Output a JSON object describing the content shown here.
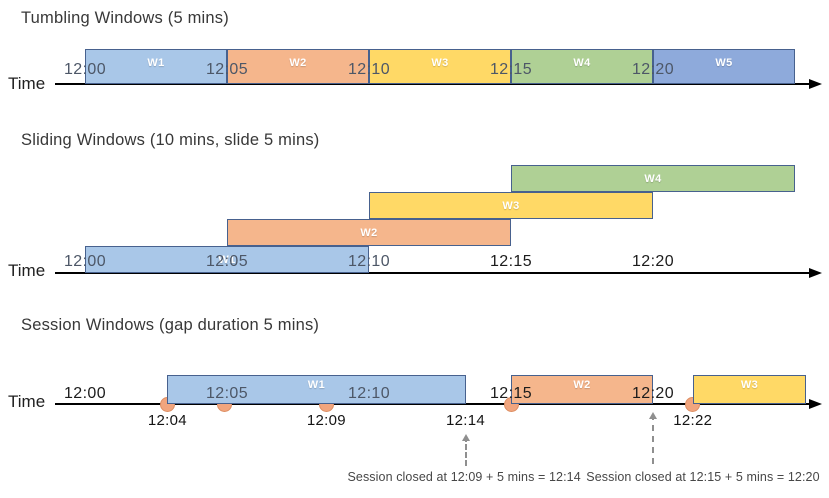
{
  "colors": {
    "box_fills": {
      "blue": "#A9C7E8",
      "orange": "#F5B68C",
      "yellow": "#FFD966",
      "green": "#AFD095",
      "steel": "#8EAADB"
    },
    "box_border": "#47618E",
    "dot_fill": "#F1A57E",
    "dot_border": "#DD8E62",
    "axis_color": "#000000"
  },
  "diagrams": [
    {
      "key": "tumbling",
      "title": "Tumbling Windows (5 mins)",
      "time_label": "Time",
      "ticks": [
        {
          "label": "12:00",
          "min": 0,
          "muted": true
        },
        {
          "label": "12:05",
          "min": 5,
          "muted": true
        },
        {
          "label": "12:10",
          "min": 10,
          "muted": true
        },
        {
          "label": "12:15",
          "min": 15,
          "muted": true
        },
        {
          "label": "12:20",
          "min": 20,
          "muted": true
        }
      ],
      "windows": [
        {
          "label": "W1",
          "start": 0,
          "end": 5,
          "color": "blue"
        },
        {
          "label": "W2",
          "start": 5,
          "end": 10,
          "color": "orange"
        },
        {
          "label": "W3",
          "start": 10,
          "end": 15,
          "color": "yellow"
        },
        {
          "label": "W4",
          "start": 15,
          "end": 20,
          "color": "green"
        },
        {
          "label": "W5",
          "start": 20,
          "end": 25,
          "color": "steel"
        }
      ]
    },
    {
      "key": "sliding",
      "title": "Sliding Windows (10 mins, slide 5 mins)",
      "time_label": "Time",
      "ticks": [
        {
          "label": "12:00",
          "min": 0,
          "muted": true
        },
        {
          "label": "12:05",
          "min": 5,
          "muted": true
        },
        {
          "label": "12:10",
          "min": 10,
          "muted": true
        },
        {
          "label": "12:15",
          "min": 15,
          "muted": false
        },
        {
          "label": "12:20",
          "min": 20,
          "muted": false
        }
      ],
      "windows": [
        {
          "label": "W1",
          "start": 0,
          "end": 10,
          "color": "blue",
          "row": 0
        },
        {
          "label": "W2",
          "start": 5,
          "end": 15,
          "color": "orange",
          "row": 1
        },
        {
          "label": "W3",
          "start": 10,
          "end": 20,
          "color": "yellow",
          "row": 2
        },
        {
          "label": "W4",
          "start": 15,
          "end": 25,
          "color": "green",
          "row": 3
        }
      ]
    },
    {
      "key": "session",
      "title": "Session Windows (gap duration 5 mins)",
      "time_label": "Time",
      "ticks": [
        {
          "label": "12:00",
          "min": 0,
          "muted": false
        },
        {
          "label": "12:05",
          "min": 5,
          "muted": true
        },
        {
          "label": "12:10",
          "min": 10,
          "muted": true
        },
        {
          "label": "12:15",
          "min": 15,
          "muted": false
        },
        {
          "label": "12:20",
          "min": 20,
          "muted": false
        }
      ],
      "windows": [
        {
          "label": "W1",
          "start": 2.9,
          "end": 13.4,
          "color": "blue"
        },
        {
          "label": "W2",
          "start": 15,
          "end": 20,
          "color": "orange"
        },
        {
          "label": "W3",
          "start": 21.4,
          "end": 25.4,
          "color": "yellow"
        }
      ],
      "events": [
        2.9,
        4.9,
        8.5,
        15,
        21.4
      ],
      "event_labels": [
        {
          "label": "12:04",
          "min": 2.9
        },
        {
          "label": "12:09",
          "min": 8.5
        },
        {
          "label": "12:14",
          "min": 13.4
        },
        {
          "label": "12:22",
          "min": 21.4
        }
      ],
      "annotations": [
        {
          "text": "Session closed at 12:09 + 5 mins = 12:14",
          "arrow_min": 13.4,
          "text_min": 13.35
        },
        {
          "text": "Session closed at 12:15 + 5 mins = 12:20",
          "arrow_min": 20,
          "text_min": 21.76
        }
      ]
    }
  ]
}
